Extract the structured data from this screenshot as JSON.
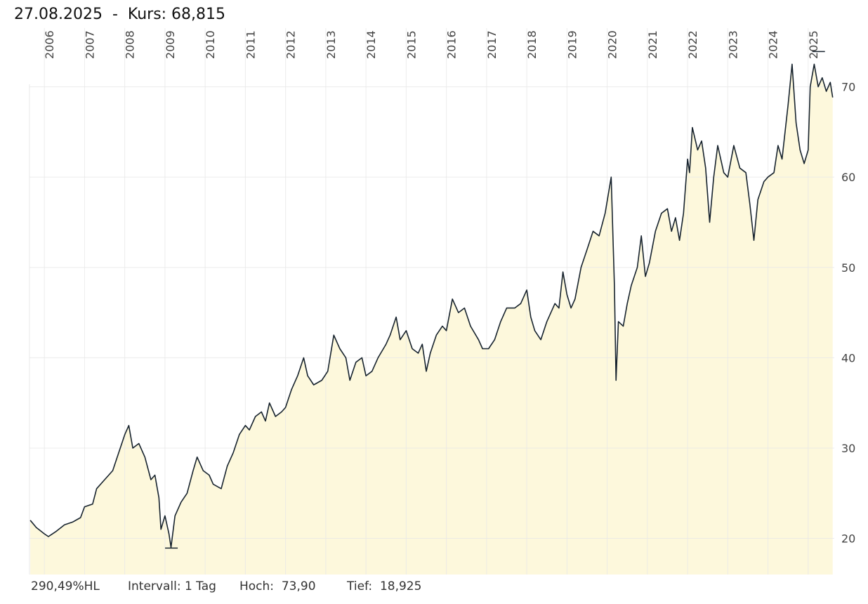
{
  "chart_data": {
    "type": "line",
    "title": "27.08.2025  -  Kurs: 68,815",
    "footer": [
      "290,49%HL",
      "Intervall: 1 Tag",
      "Hoch:  73,90",
      "Tief:  18,925"
    ],
    "color": "#17232e",
    "area_color": "#fdf8dc",
    "grid": true,
    "xlim": [
      2005.63,
      2025.65
    ],
    "ylim": [
      16,
      76.5
    ],
    "xticks": [
      2006,
      2007,
      2008,
      2009,
      2010,
      2011,
      2012,
      2013,
      2014,
      2015,
      2016,
      2017,
      2018,
      2019,
      2020,
      2021,
      2022,
      2023,
      2024,
      2025
    ],
    "yticks": [
      20,
      30,
      40,
      50,
      60,
      70
    ],
    "x": [
      2005.65,
      2005.8,
      2006.0,
      2006.1,
      2006.3,
      2006.5,
      2006.7,
      2006.9,
      2007.0,
      2007.2,
      2007.3,
      2007.5,
      2007.7,
      2007.85,
      2008.0,
      2008.1,
      2008.2,
      2008.35,
      2008.5,
      2008.65,
      2008.75,
      2008.85,
      2008.9,
      2009.0,
      2009.1,
      2009.15,
      2009.25,
      2009.4,
      2009.55,
      2009.7,
      2009.8,
      2009.95,
      2010.1,
      2010.2,
      2010.4,
      2010.55,
      2010.7,
      2010.85,
      2011.0,
      2011.1,
      2011.25,
      2011.4,
      2011.5,
      2011.6,
      2011.75,
      2011.9,
      2012.0,
      2012.15,
      2012.3,
      2012.45,
      2012.55,
      2012.7,
      2012.9,
      2013.05,
      2013.2,
      2013.35,
      2013.5,
      2013.6,
      2013.75,
      2013.9,
      2014.0,
      2014.15,
      2014.3,
      2014.5,
      2014.6,
      2014.75,
      2014.85,
      2015.0,
      2015.15,
      2015.3,
      2015.4,
      2015.5,
      2015.6,
      2015.75,
      2015.9,
      2016.0,
      2016.15,
      2016.3,
      2016.45,
      2016.6,
      2016.8,
      2016.9,
      2017.05,
      2017.2,
      2017.35,
      2017.5,
      2017.7,
      2017.85,
      2018.0,
      2018.1,
      2018.2,
      2018.35,
      2018.5,
      2018.7,
      2018.8,
      2018.9,
      2019.0,
      2019.1,
      2019.2,
      2019.35,
      2019.5,
      2019.65,
      2019.8,
      2019.95,
      2020.1,
      2020.18,
      2020.22,
      2020.28,
      2020.4,
      2020.5,
      2020.6,
      2020.75,
      2020.85,
      2020.95,
      2021.05,
      2021.2,
      2021.35,
      2021.5,
      2021.6,
      2021.7,
      2021.8,
      2021.9,
      2022.0,
      2022.05,
      2022.12,
      2022.25,
      2022.35,
      2022.45,
      2022.55,
      2022.65,
      2022.75,
      2022.9,
      2023.0,
      2023.15,
      2023.3,
      2023.45,
      2023.55,
      2023.65,
      2023.75,
      2023.9,
      2024.0,
      2024.15,
      2024.25,
      2024.35,
      2024.5,
      2024.6,
      2024.7,
      2024.8,
      2024.9,
      2025.0,
      2025.05,
      2025.15,
      2025.25,
      2025.35,
      2025.45,
      2025.55,
      2025.61
    ],
    "values": [
      22,
      21.2,
      20.5,
      20.2,
      20.8,
      21.5,
      21.8,
      22.3,
      23.5,
      23.8,
      25.5,
      26.5,
      27.5,
      29.5,
      31.5,
      32.5,
      30,
      30.5,
      29,
      26.5,
      27,
      24.5,
      21,
      22.5,
      20.5,
      19,
      22.5,
      24,
      25,
      27.5,
      29,
      27.5,
      27,
      26,
      25.5,
      28,
      29.5,
      31.5,
      32.5,
      32,
      33.5,
      34,
      33,
      35,
      33.5,
      34,
      34.5,
      36.5,
      38,
      40,
      38,
      37,
      37.5,
      38.5,
      42.5,
      41,
      40,
      37.5,
      39.5,
      40,
      38,
      38.5,
      40,
      41.5,
      42.5,
      44.5,
      42,
      43,
      41,
      40.5,
      41.5,
      38.5,
      40.5,
      42.5,
      43.5,
      43,
      46.5,
      45,
      45.5,
      43.5,
      42,
      41,
      41,
      42,
      44,
      45.5,
      45.5,
      46,
      47.5,
      44.5,
      43,
      42,
      44,
      46,
      45.5,
      49.5,
      47,
      45.5,
      46.5,
      50,
      52,
      54,
      53.5,
      56,
      60,
      48,
      37.5,
      44,
      43.5,
      46,
      48,
      50,
      53.5,
      49,
      50.5,
      54,
      56,
      56.5,
      54,
      55.5,
      53,
      56,
      62,
      60.5,
      65.5,
      63,
      64,
      61,
      55,
      60,
      63.5,
      60.5,
      60,
      63.5,
      61,
      60.5,
      57,
      53,
      57.5,
      59.5,
      60,
      60.5,
      63.5,
      62,
      68,
      72.5,
      66,
      63,
      61.5,
      63,
      70,
      72.5,
      70,
      71,
      69.5,
      70.5,
      68.815
    ],
    "markers": {
      "x": [
        2009.16,
        2025.26
      ],
      "values": [
        18.925,
        73.9
      ]
    }
  }
}
